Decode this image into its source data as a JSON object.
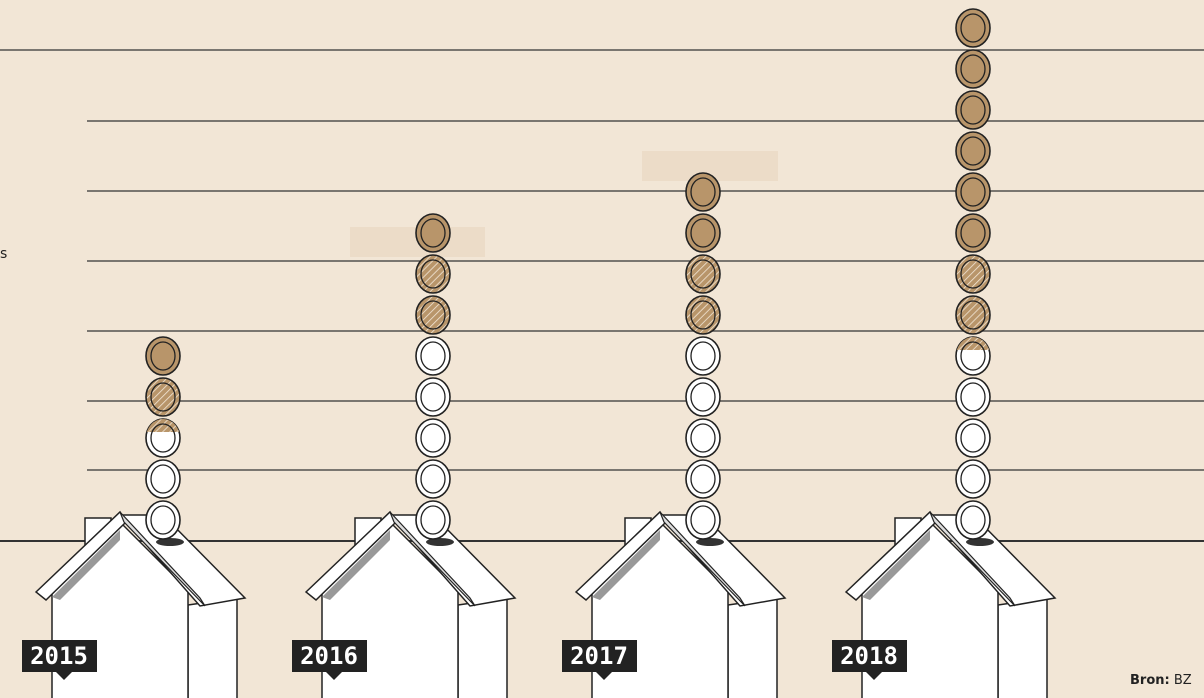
{
  "labels": {
    "left": "s",
    "source_label": "Bron:",
    "source": "BZ"
  },
  "columns": [
    {
      "year": "2015",
      "white": 2,
      "partial": 1,
      "hatched": 1,
      "brown": 1
    },
    {
      "year": "2016",
      "white": 5,
      "partial": 0,
      "hatched": 2,
      "brown": 1
    },
    {
      "year": "2017",
      "white": 5,
      "partial": 0,
      "hatched": 2,
      "brown": 2
    },
    {
      "year": "2018",
      "white": 4,
      "partial": 1,
      "hatched": 2,
      "brown": 6
    }
  ]
}
